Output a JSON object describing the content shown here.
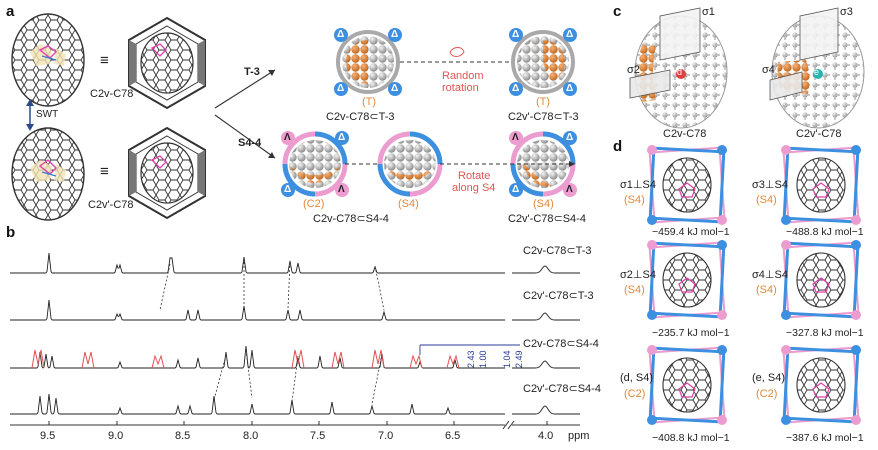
{
  "panels": {
    "a": "a",
    "b": "b",
    "c": "c",
    "d": "d"
  },
  "panel_a": {
    "equiv": "≡",
    "c2v_label": "C2v-C78",
    "c2v_prime_label": "C2v'-C78",
    "swt": "SWT",
    "t3_arrow": "T-3",
    "s44_arrow": "S4-4",
    "top_left_label": "C2v-C78⊂T-3",
    "top_right_label": "C2v'-C78⊂T-3",
    "top_left_sym": "(T)",
    "top_right_sym": "(T)",
    "random_rotation": [
      "Random",
      "rotation"
    ],
    "bot_labels": [
      "C2v-C78⊂S4-4",
      "C2v'-C78⊂S4-4"
    ],
    "bot_syms": [
      "(C2)",
      "(S4)",
      "(S4)"
    ],
    "rotate_along": [
      "Rotate",
      "along S4"
    ],
    "delta": "Δ",
    "lambda": "Λ"
  },
  "panel_b": {
    "traces": [
      "C2v-C78⊂T-3",
      "C2v'-C78⊂T-3",
      "C2v-C78⊂S4-4",
      "C2v'-C78⊂S4-4"
    ],
    "axis_ticks": [
      "9.5",
      "9.0",
      "8.5",
      "8.0",
      "7.5",
      "7.0",
      "6.5",
      "4.0"
    ],
    "axis_unit": "ppm",
    "integrals": [
      "2.43",
      "1.00",
      "1.04",
      "2.49"
    ]
  },
  "panel_c": {
    "left_label": "C2v-C78",
    "right_label": "C2v'-C78",
    "sigma": [
      "σ1",
      "σ2",
      "σ3",
      "σ4"
    ],
    "d": "d",
    "e": "e"
  },
  "panel_d": {
    "cells": [
      {
        "label": "σ1⊥S4",
        "sym": "(S4)",
        "energy": "−459.4 kJ mol−1"
      },
      {
        "label": "σ3⊥S4",
        "sym": "(S4)",
        "energy": "−488.8 kJ mol−1"
      },
      {
        "label": "σ2⊥S4",
        "sym": "(S4)",
        "energy": "−235.7 kJ mol−1"
      },
      {
        "label": "σ4⊥S4",
        "sym": "(S4)",
        "energy": "−327.8 kJ mol−1"
      },
      {
        "label": "(d, S4)",
        "sym": "(C2)",
        "energy": "−408.8 kJ mol−1"
      },
      {
        "label": "(e, S4)",
        "sym": "(C2)",
        "energy": "−387.6 kJ mol−1"
      }
    ]
  },
  "colors": {
    "orange": "#e08a3a",
    "blue": "#3d8fe0",
    "pink": "#ec9ccf",
    "red": "#e25353",
    "grey": "#9a9a9a"
  }
}
